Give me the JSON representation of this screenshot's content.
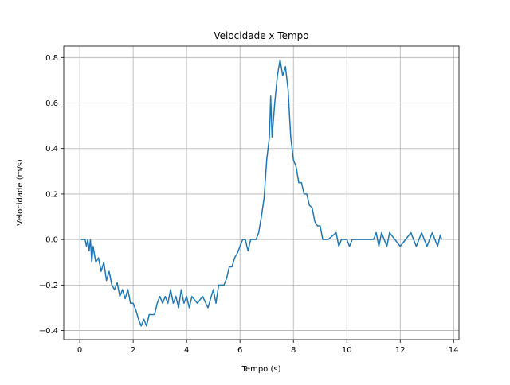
{
  "chart_data": {
    "type": "line",
    "title": "Velocidade x Tempo",
    "x_label": "Tempo (s)",
    "y_label": "Velocidade (m/s)",
    "series": [
      {
        "color": "#1f77b4",
        "x": [
          0.05,
          0.2,
          0.25,
          0.3,
          0.35,
          0.4,
          0.45,
          0.5,
          0.6,
          0.7,
          0.8,
          0.9,
          1.0,
          1.1,
          1.2,
          1.3,
          1.4,
          1.5,
          1.6,
          1.7,
          1.8,
          1.9,
          2.0,
          2.1,
          2.2,
          2.3,
          2.4,
          2.5,
          2.6,
          2.8,
          2.9,
          3.0,
          3.1,
          3.2,
          3.3,
          3.4,
          3.5,
          3.6,
          3.7,
          3.8,
          3.9,
          4.0,
          4.1,
          4.2,
          4.4,
          4.6,
          4.8,
          5.0,
          5.1,
          5.2,
          5.4,
          5.5,
          5.6,
          5.7,
          5.8,
          5.9,
          6.0,
          6.1,
          6.2,
          6.3,
          6.4,
          6.5,
          6.6,
          6.7,
          6.8,
          6.9,
          7.0,
          7.1,
          7.15,
          7.2,
          7.3,
          7.4,
          7.5,
          7.6,
          7.7,
          7.8,
          7.9,
          8.0,
          8.1,
          8.2,
          8.3,
          8.4,
          8.5,
          8.6,
          8.7,
          8.8,
          8.9,
          9.0,
          9.1,
          9.3,
          9.6,
          9.7,
          9.8,
          10.0,
          10.1,
          10.2,
          11.0,
          11.1,
          11.2,
          11.3,
          11.5,
          11.6,
          11.8,
          12.0,
          12.2,
          12.4,
          12.6,
          12.8,
          13.0,
          13.2,
          13.4,
          13.5,
          13.55
        ],
        "values": [
          0,
          0,
          -0.03,
          0,
          -0.05,
          0,
          -0.1,
          -0.03,
          -0.1,
          -0.08,
          -0.14,
          -0.1,
          -0.18,
          -0.14,
          -0.2,
          -0.22,
          -0.19,
          -0.25,
          -0.22,
          -0.26,
          -0.22,
          -0.28,
          -0.28,
          -0.31,
          -0.35,
          -0.38,
          -0.35,
          -0.38,
          -0.33,
          -0.33,
          -0.28,
          -0.25,
          -0.28,
          -0.25,
          -0.28,
          -0.22,
          -0.28,
          -0.25,
          -0.3,
          -0.22,
          -0.28,
          -0.25,
          -0.3,
          -0.25,
          -0.28,
          -0.25,
          -0.3,
          -0.22,
          -0.28,
          -0.2,
          -0.2,
          -0.17,
          -0.12,
          -0.12,
          -0.08,
          -0.06,
          -0.03,
          0,
          0,
          -0.05,
          0,
          0,
          0,
          0.03,
          0.1,
          0.18,
          0.35,
          0.45,
          0.63,
          0.45,
          0.6,
          0.72,
          0.79,
          0.72,
          0.76,
          0.66,
          0.45,
          0.35,
          0.32,
          0.25,
          0.25,
          0.2,
          0.2,
          0.15,
          0.14,
          0.08,
          0.06,
          0.06,
          0,
          0,
          0.03,
          -0.03,
          0,
          0,
          -0.03,
          0,
          0,
          0.03,
          -0.03,
          0.03,
          -0.03,
          0.03,
          0,
          -0.03,
          0,
          0.03,
          -0.03,
          0.03,
          -0.03,
          0.03,
          -0.03,
          0.02,
          0
        ]
      }
    ],
    "xlim": [
      -0.6,
      14.2
    ],
    "ylim": [
      -0.44,
      0.85
    ],
    "xticks": [
      0,
      2,
      4,
      6,
      8,
      10,
      12,
      14
    ],
    "yticks": [
      {
        "value": -0.4,
        "label": "−0.4"
      },
      {
        "value": -0.2,
        "label": "−0.2"
      },
      {
        "value": 0,
        "label": "0.0"
      },
      0.2,
      0.4,
      0.6,
      0.8
    ],
    "grid": true
  }
}
